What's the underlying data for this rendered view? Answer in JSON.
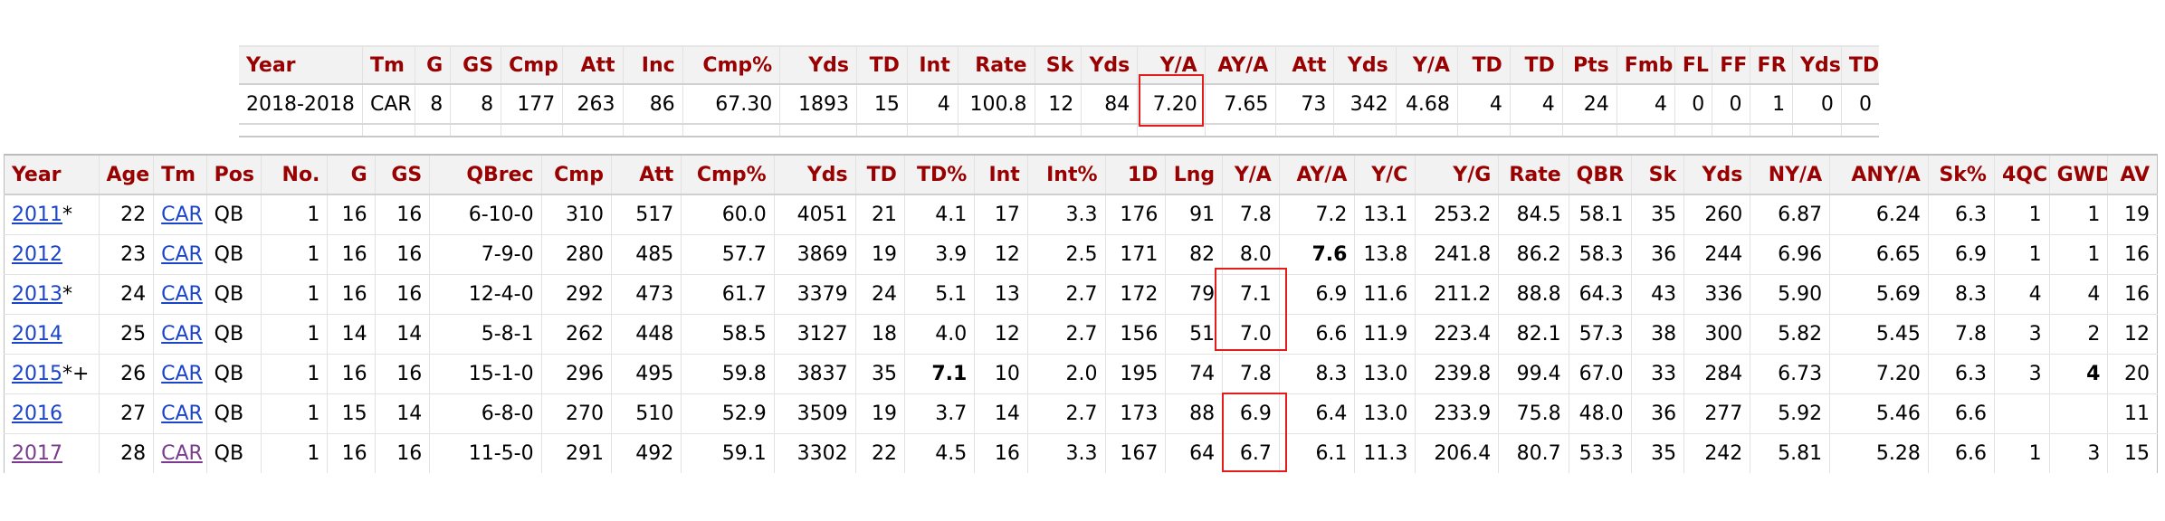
{
  "summary": {
    "headers": [
      "Year",
      "Tm",
      "G",
      "GS",
      "Cmp",
      "Att",
      "Inc",
      "Cmp%",
      "Yds",
      "TD",
      "Int",
      "Rate",
      "Sk",
      "Yds",
      "Y/A",
      "AY/A",
      "Att",
      "Yds",
      "Y/A",
      "TD",
      "TD",
      "Pts",
      "Fmb",
      "FL",
      "FF",
      "FR",
      "Yds",
      "TD"
    ],
    "row": [
      "2018-2018",
      "CAR",
      "8",
      "8",
      "177",
      "263",
      "86",
      "67.30",
      "1893",
      "15",
      "4",
      "100.8",
      "12",
      "84",
      "7.20",
      "7.65",
      "73",
      "342",
      "4.68",
      "4",
      "4",
      "24",
      "4",
      "0",
      "0",
      "1",
      "0",
      "0"
    ]
  },
  "career": {
    "headers": [
      "Year",
      "Age",
      "Tm",
      "Pos",
      "No.",
      "G",
      "GS",
      "QBrec",
      "Cmp",
      "Att",
      "Cmp%",
      "Yds",
      "TD",
      "TD%",
      "Int",
      "Int%",
      "1D",
      "Lng",
      "Y/A",
      "AY/A",
      "Y/C",
      "Y/G",
      "Rate",
      "QBR",
      "Sk",
      "Yds",
      "NY/A",
      "ANY/A",
      "Sk%",
      "4QC",
      "GWD",
      "AV"
    ],
    "rows": [
      {
        "year": "2011",
        "year_suffix": "*",
        "link_style": "lnk",
        "cells": [
          "22",
          "CAR",
          "QB",
          "1",
          "16",
          "16",
          "6-10-0",
          "310",
          "517",
          "60.0",
          "4051",
          "21",
          "4.1",
          "17",
          "3.3",
          "176",
          "91",
          "7.8",
          "7.2",
          "13.1",
          "253.2",
          "84.5",
          "58.1",
          "35",
          "260",
          "6.87",
          "6.24",
          "6.3",
          "1",
          "1",
          "19"
        ]
      },
      {
        "year": "2012",
        "year_suffix": "",
        "link_style": "lnk",
        "cells": [
          "23",
          "CAR",
          "QB",
          "1",
          "16",
          "16",
          "7-9-0",
          "280",
          "485",
          "57.7",
          "3869",
          "19",
          "3.9",
          "12",
          "2.5",
          "171",
          "82",
          "8.0",
          "7.6",
          "13.8",
          "241.8",
          "86.2",
          "58.3",
          "36",
          "244",
          "6.96",
          "6.65",
          "6.9",
          "1",
          "1",
          "16"
        ]
      },
      {
        "year": "2013",
        "year_suffix": "*",
        "link_style": "lnk",
        "cells": [
          "24",
          "CAR",
          "QB",
          "1",
          "16",
          "16",
          "12-4-0",
          "292",
          "473",
          "61.7",
          "3379",
          "24",
          "5.1",
          "13",
          "2.7",
          "172",
          "79",
          "7.1",
          "6.9",
          "11.6",
          "211.2",
          "88.8",
          "64.3",
          "43",
          "336",
          "5.90",
          "5.69",
          "8.3",
          "4",
          "4",
          "16"
        ]
      },
      {
        "year": "2014",
        "year_suffix": "",
        "link_style": "lnk",
        "cells": [
          "25",
          "CAR",
          "QB",
          "1",
          "14",
          "14",
          "5-8-1",
          "262",
          "448",
          "58.5",
          "3127",
          "18",
          "4.0",
          "12",
          "2.7",
          "156",
          "51",
          "7.0",
          "6.6",
          "11.9",
          "223.4",
          "82.1",
          "57.3",
          "38",
          "300",
          "5.82",
          "5.45",
          "7.8",
          "3",
          "2",
          "12"
        ]
      },
      {
        "year": "2015",
        "year_suffix": "*+",
        "link_style": "lnk",
        "cells": [
          "26",
          "CAR",
          "QB",
          "1",
          "16",
          "16",
          "15-1-0",
          "296",
          "495",
          "59.8",
          "3837",
          "35",
          "7.1",
          "10",
          "2.0",
          "195",
          "74",
          "7.8",
          "8.3",
          "13.0",
          "239.8",
          "99.4",
          "67.0",
          "33",
          "284",
          "6.73",
          "7.20",
          "6.3",
          "3",
          "4",
          "20"
        ]
      },
      {
        "year": "2016",
        "year_suffix": "",
        "link_style": "lnk",
        "cells": [
          "27",
          "CAR",
          "QB",
          "1",
          "15",
          "14",
          "6-8-0",
          "270",
          "510",
          "52.9",
          "3509",
          "19",
          "3.7",
          "14",
          "2.7",
          "173",
          "88",
          "6.9",
          "6.4",
          "13.0",
          "233.9",
          "75.8",
          "48.0",
          "36",
          "277",
          "5.92",
          "5.46",
          "6.6",
          "",
          "",
          "11"
        ]
      },
      {
        "year": "2017",
        "year_suffix": "",
        "link_style": "vis",
        "cells": [
          "28",
          "CAR",
          "QB",
          "1",
          "16",
          "16",
          "11-5-0",
          "291",
          "492",
          "59.1",
          "3302",
          "22",
          "4.5",
          "16",
          "3.3",
          "167",
          "64",
          "6.7",
          "6.1",
          "11.3",
          "206.4",
          "80.7",
          "53.3",
          "35",
          "242",
          "5.81",
          "5.28",
          "6.6",
          "1",
          "3",
          "15"
        ]
      }
    ]
  }
}
